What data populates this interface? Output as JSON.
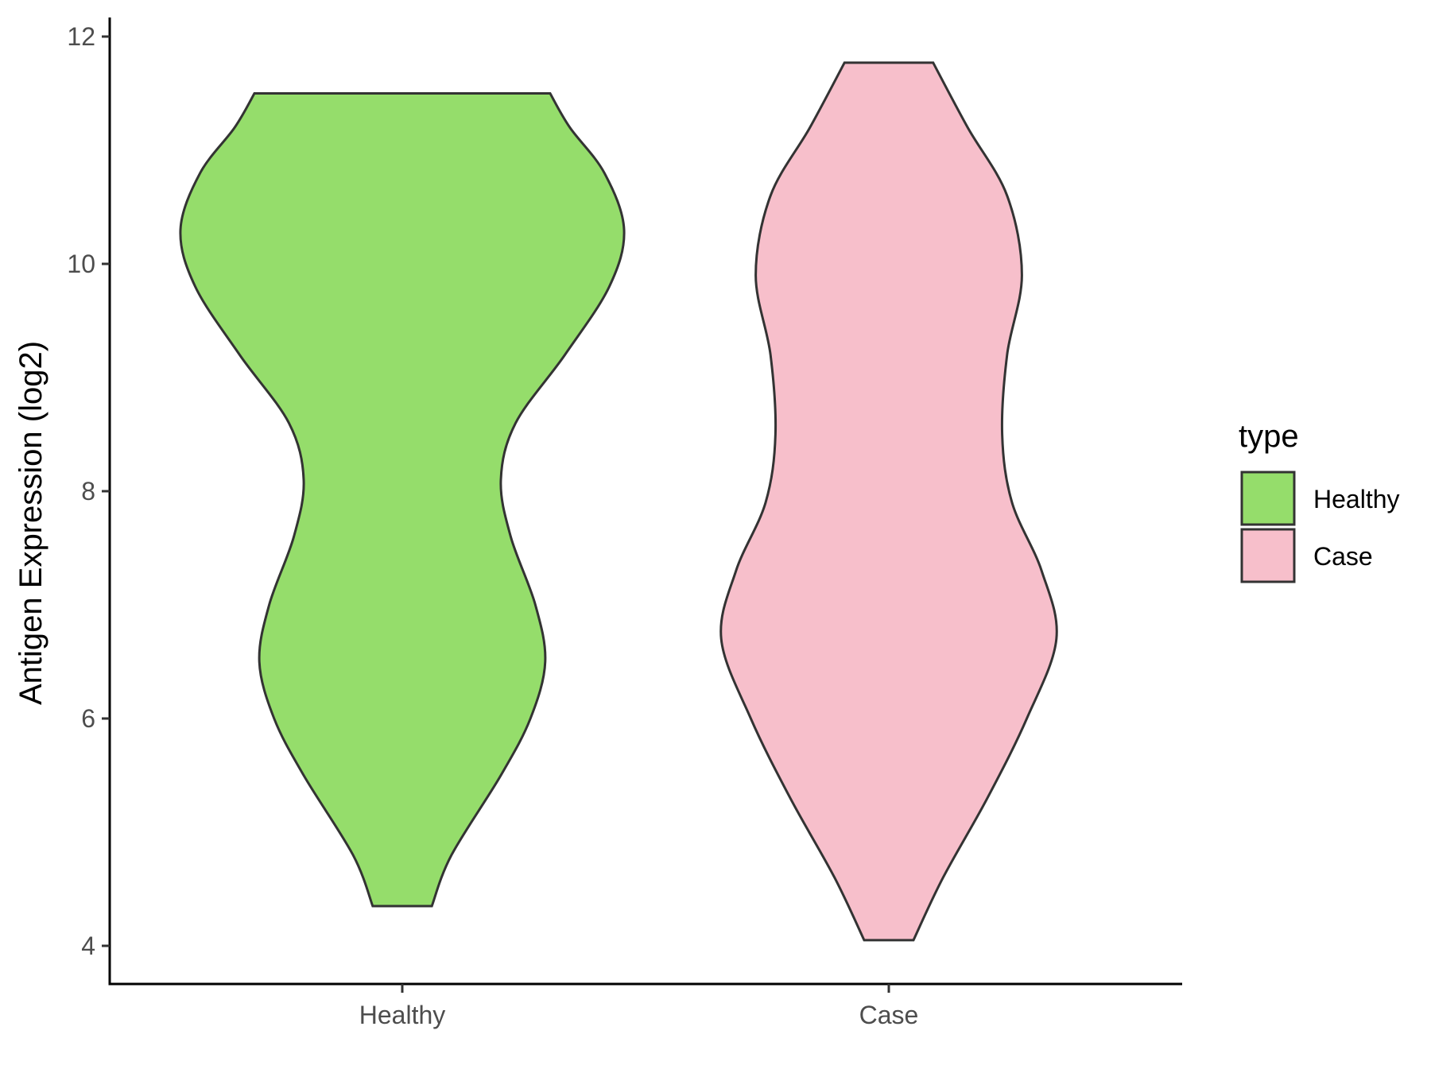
{
  "chart_data": {
    "type": "violin",
    "title": "",
    "xlabel": "",
    "ylabel": "Antigen Expression (log2)",
    "ylim": [
      3.9,
      12.2
    ],
    "y_ticks": [
      4,
      6,
      8,
      10,
      12
    ],
    "grid": false,
    "legend": {
      "title": "type",
      "placement": "right",
      "entries": [
        {
          "label": "Healthy",
          "color": "#95DD6B"
        },
        {
          "label": "Case",
          "color": "#F7BFCB"
        }
      ]
    },
    "categories": [
      "Healthy",
      "Case"
    ],
    "series": [
      {
        "name": "Healthy",
        "color": "#95DD6B",
        "min": 4.35,
        "max": 11.5,
        "density_profile": [
          {
            "y": 4.35,
            "half_width": 0.06
          },
          {
            "y": 4.8,
            "half_width": 0.1
          },
          {
            "y": 5.5,
            "half_width": 0.2
          },
          {
            "y": 6.0,
            "half_width": 0.26
          },
          {
            "y": 6.5,
            "half_width": 0.29
          },
          {
            "y": 7.0,
            "half_width": 0.27
          },
          {
            "y": 7.6,
            "half_width": 0.22
          },
          {
            "y": 8.1,
            "half_width": 0.2
          },
          {
            "y": 8.6,
            "half_width": 0.23
          },
          {
            "y": 9.2,
            "half_width": 0.33
          },
          {
            "y": 9.8,
            "half_width": 0.42
          },
          {
            "y": 10.3,
            "half_width": 0.45
          },
          {
            "y": 10.8,
            "half_width": 0.41
          },
          {
            "y": 11.2,
            "half_width": 0.34
          },
          {
            "y": 11.5,
            "half_width": 0.3
          }
        ]
      },
      {
        "name": "Case",
        "color": "#F7BFCB",
        "min": 4.05,
        "max": 11.77,
        "density_profile": [
          {
            "y": 4.05,
            "half_width": 0.05
          },
          {
            "y": 4.6,
            "half_width": 0.11
          },
          {
            "y": 5.3,
            "half_width": 0.2
          },
          {
            "y": 6.0,
            "half_width": 0.28
          },
          {
            "y": 6.7,
            "half_width": 0.34
          },
          {
            "y": 7.3,
            "half_width": 0.31
          },
          {
            "y": 7.9,
            "half_width": 0.25
          },
          {
            "y": 8.5,
            "half_width": 0.23
          },
          {
            "y": 9.2,
            "half_width": 0.24
          },
          {
            "y": 9.9,
            "half_width": 0.27
          },
          {
            "y": 10.6,
            "half_width": 0.24
          },
          {
            "y": 11.2,
            "half_width": 0.16
          },
          {
            "y": 11.77,
            "half_width": 0.09
          }
        ]
      }
    ]
  }
}
